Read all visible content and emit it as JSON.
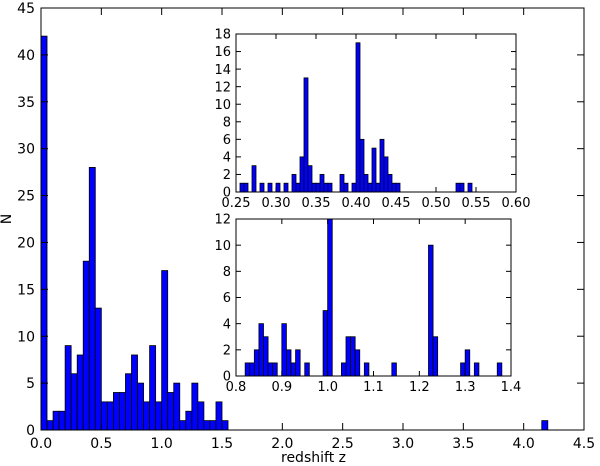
{
  "chart_data": [
    {
      "type": "bar",
      "panel": "main",
      "xlabel": "redshift z",
      "ylabel": "N",
      "xlim": [
        0,
        4.5
      ],
      "ylim": [
        0,
        45
      ],
      "xticks": [
        0.0,
        0.5,
        1.0,
        1.5,
        2.0,
        2.5,
        3.0,
        3.5,
        4.0,
        4.5
      ],
      "xtick_labels": [
        "0.0",
        "0.5",
        "1.0",
        "1.5",
        "2.0",
        "2.5",
        "3.0",
        "3.5",
        "4.0",
        "4.5"
      ],
      "yticks": [
        0,
        5,
        10,
        15,
        20,
        25,
        30,
        35,
        40,
        45
      ],
      "ytick_labels": [
        "0",
        "5",
        "10",
        "15",
        "20",
        "25",
        "30",
        "35",
        "40",
        "45"
      ],
      "bin_width": 0.05,
      "bin_starts": [
        0.0,
        0.05,
        0.1,
        0.15,
        0.2,
        0.25,
        0.3,
        0.35,
        0.4,
        0.45,
        0.5,
        0.55,
        0.6,
        0.65,
        0.7,
        0.75,
        0.8,
        0.85,
        0.9,
        0.95,
        1.0,
        1.05,
        1.1,
        1.15,
        1.2,
        1.25,
        1.3,
        1.35,
        1.4,
        1.45,
        1.5,
        4.15
      ],
      "values": [
        42,
        1,
        2,
        2,
        9,
        6,
        8,
        18,
        28,
        13,
        3,
        3,
        4,
        4,
        6,
        8,
        5,
        3,
        9,
        3,
        17,
        4,
        5,
        1,
        2,
        5,
        3,
        1,
        1,
        3,
        1,
        1
      ],
      "bar_color": "#0000ff",
      "edge_color": "#000000"
    },
    {
      "type": "bar",
      "panel": "inset-top",
      "xlim": [
        0.25,
        0.6
      ],
      "ylim": [
        0,
        18
      ],
      "xticks": [
        0.25,
        0.3,
        0.35,
        0.4,
        0.45,
        0.5,
        0.55,
        0.6
      ],
      "xtick_labels": [
        "0.25",
        "0.30",
        "0.35",
        "0.40",
        "0.45",
        "0.50",
        "0.55",
        "0.60"
      ],
      "yticks": [
        0,
        2,
        4,
        6,
        8,
        10,
        12,
        14,
        16,
        18
      ],
      "ytick_labels": [
        "0",
        "2",
        "4",
        "6",
        "8",
        "10",
        "12",
        "14",
        "16",
        "18"
      ],
      "bin_width": 0.005,
      "bin_starts": [
        0.255,
        0.26,
        0.27,
        0.28,
        0.29,
        0.3,
        0.31,
        0.32,
        0.325,
        0.33,
        0.335,
        0.34,
        0.345,
        0.35,
        0.355,
        0.36,
        0.365,
        0.38,
        0.385,
        0.395,
        0.4,
        0.405,
        0.41,
        0.415,
        0.42,
        0.425,
        0.43,
        0.435,
        0.44,
        0.445,
        0.45,
        0.525,
        0.53,
        0.54
      ],
      "values": [
        1,
        1,
        3,
        1,
        1,
        1,
        1,
        2,
        1,
        4,
        13,
        3,
        1,
        1,
        2,
        1,
        1,
        2,
        1,
        1,
        17,
        6,
        2,
        1,
        5,
        1,
        6,
        4,
        2,
        1,
        1,
        1,
        1,
        1
      ],
      "bar_color": "#0000ff",
      "edge_color": "#000000"
    },
    {
      "type": "bar",
      "panel": "inset-bottom",
      "xlim": [
        0.8,
        1.4
      ],
      "ylim": [
        0,
        12
      ],
      "xticks": [
        0.8,
        0.9,
        1.0,
        1.1,
        1.2,
        1.3,
        1.4
      ],
      "xtick_labels": [
        "0.8",
        "0.9",
        "1.0",
        "1.1",
        "1.2",
        "1.3",
        "1.4"
      ],
      "yticks": [
        0,
        2,
        4,
        6,
        8,
        10,
        12
      ],
      "ytick_labels": [
        "0",
        "2",
        "4",
        "6",
        "8",
        "10",
        "12"
      ],
      "bin_width": 0.01,
      "bin_starts": [
        0.82,
        0.83,
        0.84,
        0.85,
        0.86,
        0.87,
        0.88,
        0.9,
        0.91,
        0.92,
        0.93,
        0.95,
        0.99,
        1.0,
        1.03,
        1.04,
        1.05,
        1.06,
        1.08,
        1.14,
        1.22,
        1.23,
        1.29,
        1.3,
        1.32,
        1.37
      ],
      "values": [
        1,
        1,
        2,
        4,
        3,
        1,
        1,
        4,
        2,
        1,
        2,
        1,
        5,
        12,
        1,
        3,
        3,
        2,
        1,
        1,
        10,
        3,
        1,
        2,
        1,
        1
      ],
      "bar_color": "#0000ff",
      "edge_color": "#000000"
    }
  ]
}
